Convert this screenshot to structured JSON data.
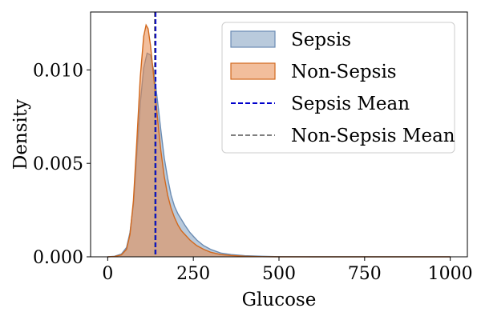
{
  "chart_data": {
    "type": "area",
    "xlabel": "Glucose",
    "ylabel": "Density",
    "xlim": [
      -50,
      1050
    ],
    "ylim": [
      0,
      0.0131
    ],
    "x_ticks": [
      0,
      250,
      500,
      750,
      1000
    ],
    "y_ticks": [
      0.0,
      0.005,
      0.01
    ],
    "x_tick_labels": [
      "0",
      "250",
      "500",
      "750",
      "1000"
    ],
    "y_tick_labels": [
      "0.000",
      "0.005",
      "0.010"
    ],
    "grid": false,
    "legend_position": "top-right",
    "series": [
      {
        "name": "Sepsis",
        "color": "#7f9fc0",
        "edge_color": "#6b8cb3",
        "x": [
          0,
          20,
          40,
          55,
          65,
          75,
          85,
          95,
          105,
          115,
          125,
          135,
          145,
          155,
          165,
          175,
          185,
          195,
          205,
          215,
          225,
          240,
          260,
          280,
          300,
          330,
          360,
          400,
          450,
          500,
          600,
          700,
          800,
          900,
          1000
        ],
        "y": [
          0.0,
          3e-05,
          0.00015,
          0.0005,
          0.0013,
          0.0028,
          0.0055,
          0.0082,
          0.0101,
          0.0109,
          0.0108,
          0.0099,
          0.0084,
          0.0068,
          0.0053,
          0.0042,
          0.0033,
          0.0027,
          0.0023,
          0.002,
          0.0017,
          0.0013,
          0.0009,
          0.0006,
          0.0004,
          0.0002,
          0.00012,
          6e-05,
          3e-05,
          1e-05,
          0.0,
          0.0,
          0.0,
          0.0,
          0.0
        ]
      },
      {
        "name": "Non-Sepsis",
        "color": "#e8884a",
        "edge_color": "#d2691e",
        "x": [
          0,
          20,
          40,
          55,
          65,
          75,
          85,
          95,
          105,
          112,
          118,
          125,
          135,
          145,
          155,
          165,
          175,
          185,
          195,
          205,
          215,
          225,
          240,
          260,
          280,
          300,
          330,
          360,
          400,
          450,
          500,
          600,
          700,
          800,
          900,
          1000
        ],
        "y": [
          0.0,
          2e-05,
          0.0001,
          0.0004,
          0.0012,
          0.003,
          0.0062,
          0.0096,
          0.0118,
          0.0124,
          0.0122,
          0.0113,
          0.0095,
          0.0075,
          0.0057,
          0.0043,
          0.0033,
          0.0026,
          0.0021,
          0.0017,
          0.0014,
          0.0012,
          0.0009,
          0.0006,
          0.0004,
          0.00025,
          0.00012,
          7e-05,
          3e-05,
          1e-05,
          0.0,
          0.0,
          0.0,
          0.0,
          0.0,
          0.0
        ]
      }
    ],
    "reference_lines": [
      {
        "name": "Sepsis Mean",
        "x": 140,
        "color": "#0000cc",
        "style": "dashed"
      },
      {
        "name": "Non-Sepsis Mean",
        "x": 137,
        "color": "#808080",
        "style": "dashed"
      }
    ]
  }
}
